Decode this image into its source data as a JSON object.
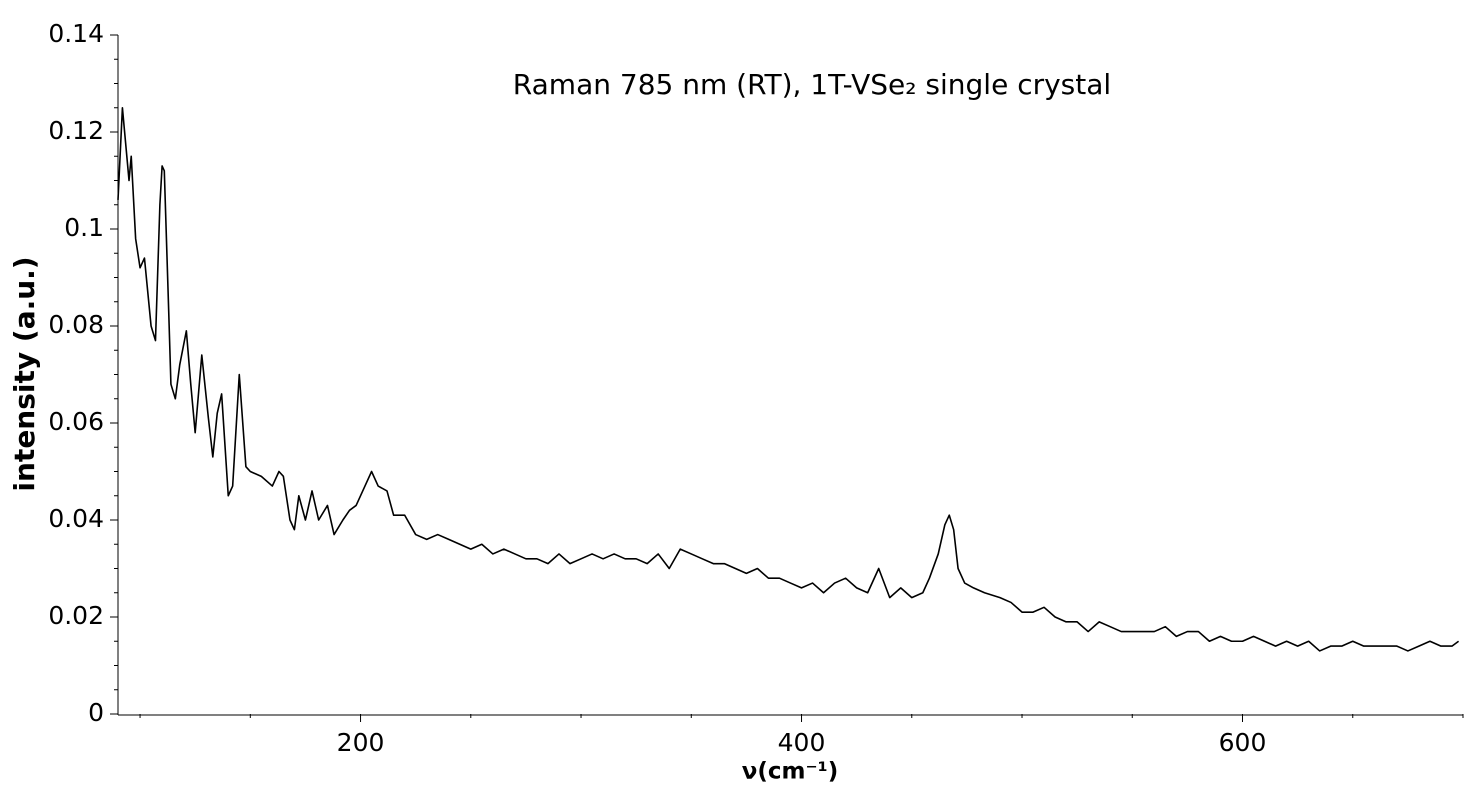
{
  "chart_data": {
    "type": "line",
    "title": "Raman 785 nm (RT), 1T-VSe₂ single crystal",
    "x_label": "ν(cm⁻¹)",
    "y_label": "intensity (a.u.)",
    "xlim": [
      90,
      700
    ],
    "ylim": [
      0,
      0.14
    ],
    "xticks": [
      200,
      400,
      600
    ],
    "xticks_minor": [
      100,
      150,
      250,
      300,
      350,
      450,
      500,
      550,
      650,
      700
    ],
    "yticks": [
      0,
      0.02,
      0.04,
      0.06,
      0.08,
      0.1,
      0.12,
      0.14
    ],
    "yticks_minor": [
      0.005,
      0.01,
      0.015,
      0.025,
      0.03,
      0.035,
      0.045,
      0.05,
      0.055,
      0.065,
      0.07,
      0.075,
      0.085,
      0.09,
      0.095,
      0.105,
      0.11,
      0.115,
      0.125,
      0.13,
      0.135
    ],
    "grid": false,
    "series": [
      {
        "color": "#000000",
        "x": [
          90,
          92,
          95,
          96,
          98,
          100,
          102,
          105,
          107,
          109,
          110,
          111,
          113,
          114,
          116,
          118,
          121,
          123,
          125,
          128,
          131,
          133,
          135,
          137,
          140,
          142,
          145,
          148,
          150,
          155,
          160,
          163,
          165,
          168,
          170,
          172,
          175,
          178,
          181,
          185,
          188,
          192,
          195,
          198,
          202,
          205,
          208,
          212,
          215,
          220,
          225,
          230,
          235,
          240,
          245,
          250,
          255,
          260,
          265,
          270,
          275,
          280,
          285,
          290,
          295,
          300,
          305,
          310,
          315,
          320,
          325,
          330,
          335,
          340,
          345,
          350,
          355,
          360,
          365,
          370,
          375,
          380,
          385,
          390,
          395,
          400,
          405,
          410,
          415,
          420,
          425,
          430,
          435,
          440,
          445,
          450,
          455,
          458,
          462,
          465,
          467,
          469,
          471,
          474,
          478,
          483,
          490,
          495,
          500,
          505,
          510,
          515,
          520,
          525,
          530,
          535,
          540,
          545,
          550,
          555,
          560,
          565,
          570,
          575,
          580,
          585,
          590,
          595,
          600,
          605,
          610,
          615,
          620,
          625,
          630,
          635,
          640,
          645,
          650,
          655,
          660,
          665,
          670,
          675,
          680,
          685,
          690,
          695,
          698
        ],
        "values": [
          0.106,
          0.125,
          0.11,
          0.115,
          0.098,
          0.092,
          0.094,
          0.08,
          0.077,
          0.105,
          0.113,
          0.112,
          0.083,
          0.068,
          0.065,
          0.072,
          0.079,
          0.068,
          0.058,
          0.074,
          0.061,
          0.053,
          0.062,
          0.066,
          0.045,
          0.047,
          0.07,
          0.051,
          0.05,
          0.049,
          0.047,
          0.05,
          0.049,
          0.04,
          0.038,
          0.045,
          0.04,
          0.046,
          0.04,
          0.043,
          0.037,
          0.04,
          0.042,
          0.043,
          0.047,
          0.05,
          0.047,
          0.046,
          0.041,
          0.041,
          0.037,
          0.036,
          0.037,
          0.036,
          0.035,
          0.034,
          0.035,
          0.033,
          0.034,
          0.033,
          0.032,
          0.032,
          0.031,
          0.033,
          0.031,
          0.032,
          0.033,
          0.032,
          0.033,
          0.032,
          0.032,
          0.031,
          0.033,
          0.03,
          0.034,
          0.033,
          0.032,
          0.031,
          0.031,
          0.03,
          0.029,
          0.03,
          0.028,
          0.028,
          0.027,
          0.026,
          0.027,
          0.025,
          0.027,
          0.028,
          0.026,
          0.025,
          0.03,
          0.024,
          0.026,
          0.024,
          0.025,
          0.028,
          0.033,
          0.039,
          0.041,
          0.038,
          0.03,
          0.027,
          0.026,
          0.025,
          0.024,
          0.023,
          0.021,
          0.021,
          0.022,
          0.02,
          0.019,
          0.019,
          0.017,
          0.019,
          0.018,
          0.017,
          0.017,
          0.017,
          0.017,
          0.018,
          0.016,
          0.017,
          0.017,
          0.015,
          0.016,
          0.015,
          0.015,
          0.016,
          0.015,
          0.014,
          0.015,
          0.014,
          0.015,
          0.013,
          0.014,
          0.014,
          0.015,
          0.014,
          0.014,
          0.014,
          0.014,
          0.013,
          0.014,
          0.015,
          0.014,
          0.014,
          0.015
        ]
      }
    ]
  }
}
